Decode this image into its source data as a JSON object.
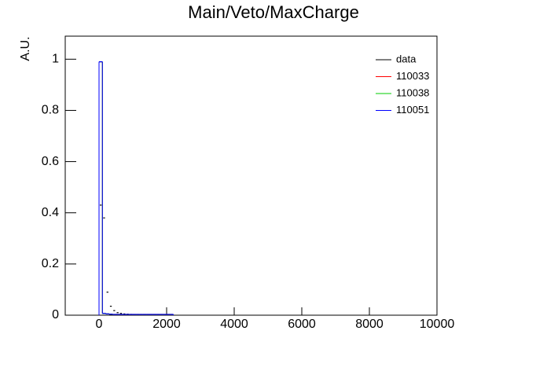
{
  "chart_data": {
    "type": "histogram",
    "title": "Main/Veto/MaxCharge",
    "y_label": "A.U.",
    "bins": [
      0,
      100,
      200,
      300,
      400,
      500,
      600,
      700,
      800,
      900,
      1000,
      1100,
      1200,
      1300,
      1400,
      1500,
      1600,
      1700,
      1800,
      1900,
      2000,
      2100,
      2200
    ],
    "series": [
      {
        "name": "data",
        "color": "#000000",
        "style": "markers",
        "values": [
          0.43,
          0.38,
          0.09,
          0.035,
          0.018,
          0.01,
          0.007,
          0.005,
          0.004,
          0.003,
          0.002,
          0.002,
          0.002,
          0.001,
          0.001,
          0.001,
          0.001,
          0.001,
          0.001,
          0.001,
          0.0005,
          0.0005
        ]
      },
      {
        "name": "110033",
        "color": "#ff0000",
        "style": "step",
        "values": [
          0.99,
          0.007,
          0.005,
          0.004,
          0.003,
          0.003,
          0.003,
          0.003,
          0.003,
          0.003,
          0.003,
          0.003,
          0.003,
          0.003,
          0.003,
          0.003,
          0.003,
          0.003,
          0.003,
          0.003,
          0.003,
          0.003
        ]
      },
      {
        "name": "110038",
        "color": "#00cc00",
        "style": "step",
        "values": [
          0.99,
          0.007,
          0.005,
          0.004,
          0.003,
          0.003,
          0.003,
          0.003,
          0.003,
          0.003,
          0.003,
          0.003,
          0.003,
          0.003,
          0.003,
          0.003,
          0.003,
          0.003,
          0.003,
          0.003,
          0.003,
          0.003
        ]
      },
      {
        "name": "110051",
        "color": "#0000ff",
        "style": "step",
        "values": [
          0.99,
          0.007,
          0.005,
          0.004,
          0.003,
          0.003,
          0.003,
          0.003,
          0.003,
          0.003,
          0.003,
          0.003,
          0.003,
          0.003,
          0.003,
          0.003,
          0.003,
          0.003,
          0.003,
          0.003,
          0.003,
          0.003
        ]
      }
    ],
    "xlim": [
      -1000,
      10000
    ],
    "ylim": [
      0,
      1.09
    ],
    "xticks": [
      0,
      2000,
      4000,
      6000,
      8000,
      10000
    ],
    "yticks": [
      0,
      0.2,
      0.4,
      0.6,
      0.8,
      1
    ],
    "legend": "upper-right"
  }
}
